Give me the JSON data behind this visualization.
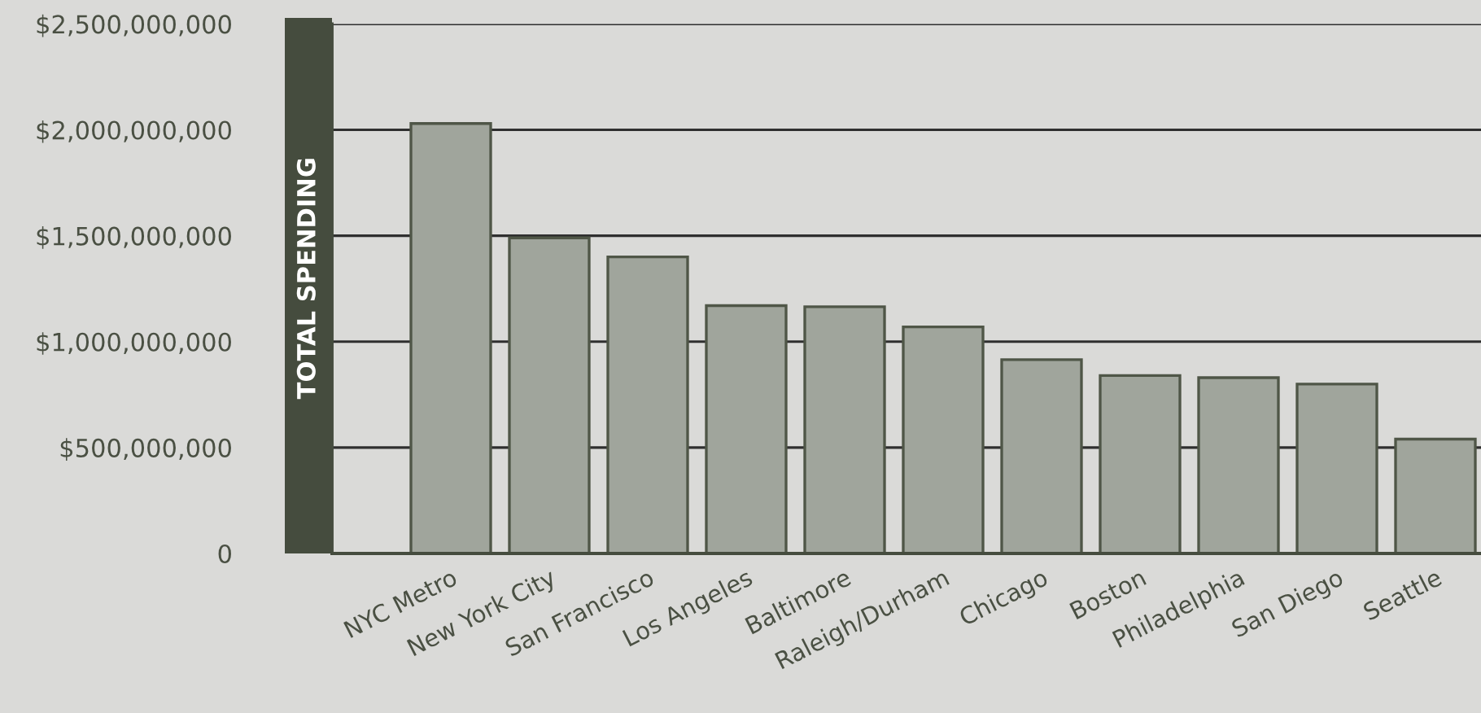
{
  "chart_data": {
    "type": "bar",
    "ylabel": "TOTAL SPENDING",
    "categories": [
      "NYC Metro",
      "New York City",
      "San Francisco",
      "Los Angeles",
      "Baltimore",
      "Raleigh/Durham",
      "Chicago",
      "Boston",
      "Philadelphia",
      "San Diego",
      "Seattle"
    ],
    "values": [
      2030000000,
      1490000000,
      1400000000,
      1170000000,
      1165000000,
      1070000000,
      915000000,
      840000000,
      830000000,
      800000000,
      540000000
    ],
    "color": "#a0a59c",
    "ylim": [
      0,
      2500000000
    ],
    "yticks": [
      0,
      {
        "value": 500000000,
        "label": "$500,000,000"
      },
      {
        "value": 1000000000,
        "label": "$1,000,000,000"
      },
      {
        "value": 1500000000,
        "label": "$1,500,000,000"
      },
      {
        "value": 2000000000,
        "label": "$2,000,000,000"
      },
      {
        "value": 2500000000,
        "label": "$2,500,000,000"
      }
    ],
    "grid": "y"
  }
}
